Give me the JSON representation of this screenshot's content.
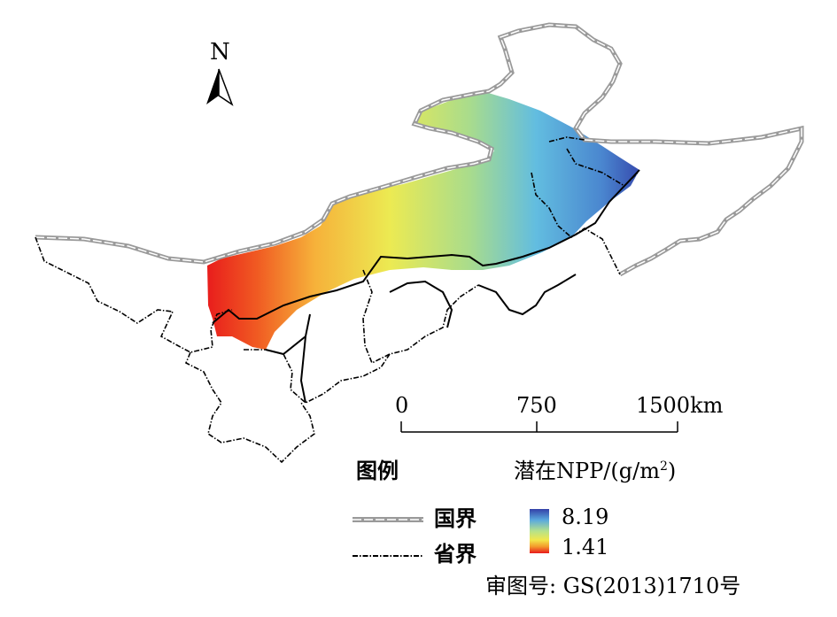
{
  "map": {
    "north_arrow": {
      "label": "N"
    },
    "scale_bar": {
      "ticks": [
        "0",
        "750",
        "1500km"
      ]
    },
    "legend": {
      "title": "图例",
      "npp_title": "潜在NPP/(g/m",
      "npp_title_sup": "2",
      "npp_title_end": ")",
      "national_border_label": "国界",
      "provincial_border_label": "省界",
      "ramp_max": "8.19",
      "ramp_min": "1.41"
    },
    "approval_number": "审图号: GS(2013)1710号",
    "colors": {
      "high": "#3b4fb8",
      "mid_high": "#5bb8e0",
      "mid": "#e8e84a",
      "mid_low": "#f29a2e",
      "low": "#e8191c",
      "national_border": "#9a9a9a"
    }
  }
}
